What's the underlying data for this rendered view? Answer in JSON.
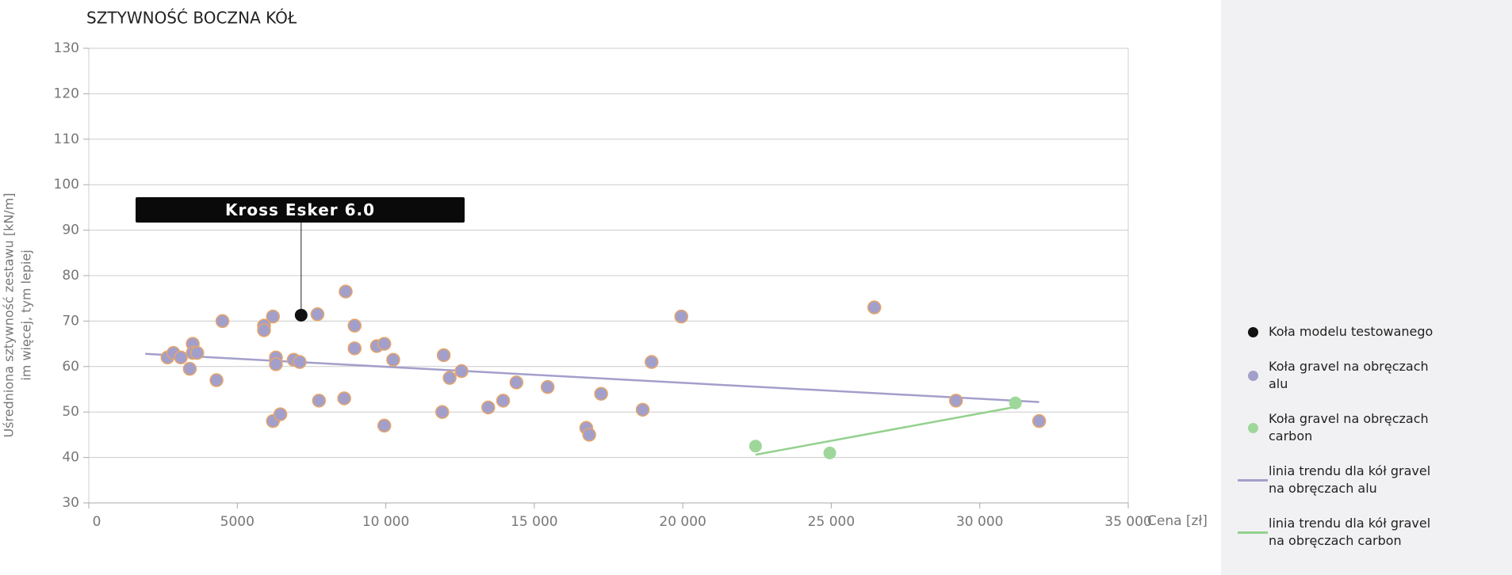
{
  "chart_data": {
    "type": "scatter",
    "title": "SZTYWNOŚĆ BOCZNA KÓŁ",
    "xlabel": "Cena [zł]",
    "ylabel": [
      "Uśredniona sztywność zestawu [kN/m]",
      "im więcej, tym lepiej"
    ],
    "annotation": "Kross Esker 6.0",
    "xlim": [
      0,
      35000
    ],
    "ylim": [
      30,
      130
    ],
    "xticks": [
      0,
      5000,
      {
        "value": 10000,
        "label": "10 000"
      },
      {
        "value": 15000,
        "label": "15 000"
      },
      {
        "value": 20000,
        "label": "20 000"
      },
      {
        "value": 25000,
        "label": "25 000"
      },
      {
        "value": 30000,
        "label": "30 000"
      },
      {
        "value": 35000,
        "label": "35 000"
      }
    ],
    "yticks": [
      30,
      40,
      50,
      60,
      70,
      80,
      90,
      100,
      110,
      120,
      130
    ],
    "grid": true,
    "legend": "right",
    "series": [
      {
        "name": "Koła modelu testowanego",
        "kind": "point",
        "color": "#111111",
        "x": [
          7150
        ],
        "values": [
          71.3
        ]
      },
      {
        "name": "Koła gravel na obręczach alu",
        "kind": "point",
        "color": "#a39fcb",
        "stroke": "#e7a566",
        "x": [
          2650,
          2850,
          3100,
          3400,
          3500,
          3500,
          3650,
          4300,
          4500,
          5900,
          5900,
          6200,
          6300,
          6300,
          6200,
          6450,
          6900,
          7100,
          7700,
          7750,
          8650,
          8600,
          8950,
          8950,
          9700,
          9950,
          9950,
          10250,
          11950,
          11900,
          12150,
          12550,
          13450,
          13950,
          14400,
          15450,
          16750,
          16850,
          17250,
          18650,
          18950,
          19950,
          26450,
          29200,
          32000
        ],
        "values": [
          62,
          63,
          62,
          59.5,
          65,
          63,
          63,
          57,
          70,
          69,
          68,
          71,
          62,
          60.5,
          48,
          49.5,
          61.5,
          61,
          71.5,
          52.5,
          76.5,
          53,
          69,
          64,
          64.5,
          65,
          47,
          61.5,
          62.5,
          50,
          57.5,
          59,
          51,
          52.5,
          56.5,
          55.5,
          46.5,
          45,
          54,
          50.5,
          61,
          71,
          73,
          52.5,
          48
        ]
      },
      {
        "name": "Koła gravel na obręczach carbon",
        "kind": "point",
        "color": "#9fd79b",
        "x": [
          22450,
          24950,
          31200
        ],
        "values": [
          42.5,
          41,
          52
        ]
      },
      {
        "name": "linia trendu dla kół gravel na obręczach alu",
        "kind": "line",
        "color": "#a39fcb",
        "x": [
          1900,
          32000
        ],
        "values": [
          62.8,
          52.2
        ]
      },
      {
        "name": "linia trendu dla kół gravel na obręczach carbon",
        "kind": "line",
        "color": "#93d18e",
        "x": [
          22450,
          31100
        ],
        "values": [
          40.6,
          51
        ]
      }
    ]
  }
}
